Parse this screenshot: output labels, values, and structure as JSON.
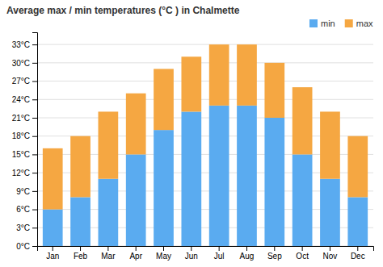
{
  "chart_data": {
    "type": "bar",
    "title": "Average max / min temperatures (°C ) in Chalmette",
    "categories": [
      "Jan",
      "Feb",
      "Mar",
      "Apr",
      "May",
      "Jun",
      "Jul",
      "Aug",
      "Sep",
      "Oct",
      "Nov",
      "Dec"
    ],
    "series": [
      {
        "name": "min",
        "color": "#5aabf0",
        "values": [
          6,
          8,
          11,
          15,
          19,
          22,
          23,
          23,
          21,
          15,
          11,
          8
        ]
      },
      {
        "name": "max",
        "color": "#f5a742",
        "values": [
          10,
          10,
          11,
          10,
          10,
          9,
          10,
          10,
          9,
          11,
          11,
          10
        ]
      }
    ],
    "stacked": true,
    "ylim": [
      0,
      35
    ],
    "yticks": [
      {
        "value": 0,
        "label": "0°C"
      },
      {
        "value": 3,
        "label": "3°C"
      },
      {
        "value": 6,
        "label": "6°C"
      },
      {
        "value": 9,
        "label": "9°C"
      },
      {
        "value": 12,
        "label": "12°C"
      },
      {
        "value": 15,
        "label": "15°C"
      },
      {
        "value": 18,
        "label": "18°C"
      },
      {
        "value": 21,
        "label": "21°C"
      },
      {
        "value": 24,
        "label": "24°C"
      },
      {
        "value": 27,
        "label": "27°C"
      },
      {
        "value": 30,
        "label": "30°C"
      },
      {
        "value": 33,
        "label": "33°C"
      }
    ],
    "grid": true,
    "legend": "upper right"
  }
}
